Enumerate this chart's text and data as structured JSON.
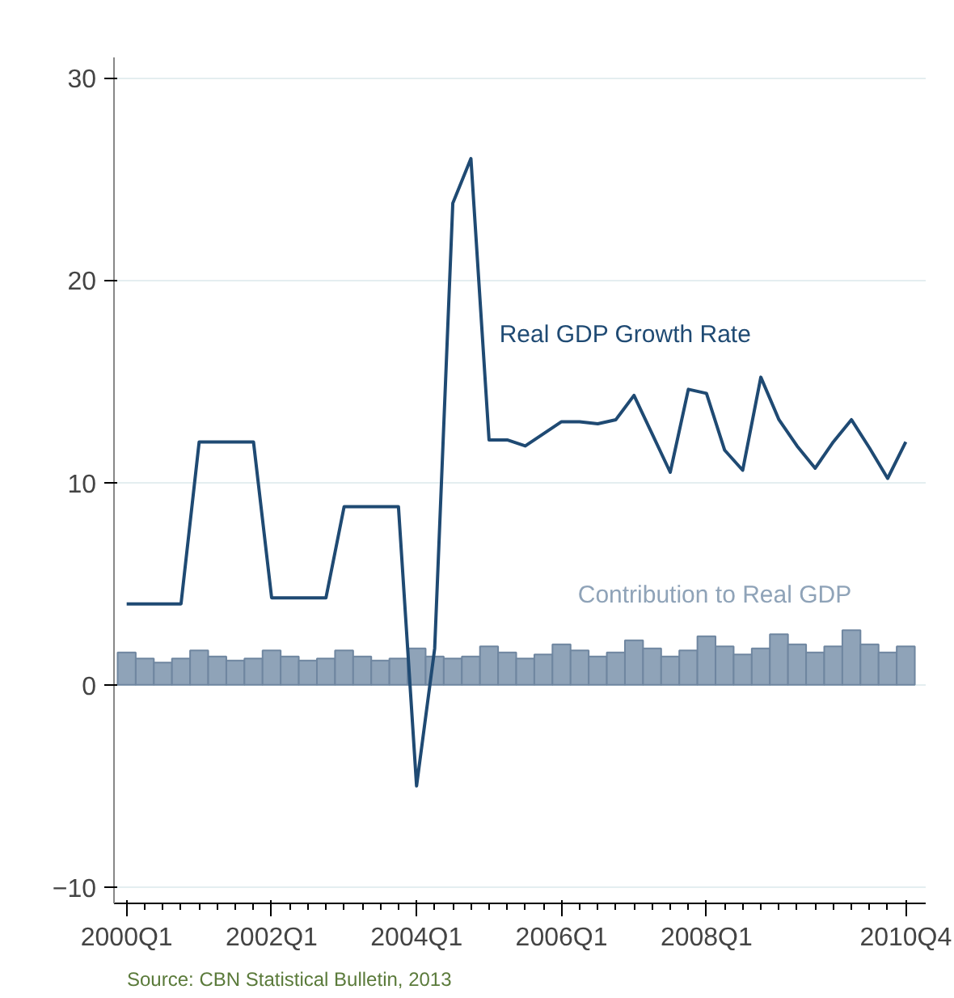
{
  "chart_data": {
    "type": "bar",
    "categories": [
      "2000Q1",
      null,
      null,
      null,
      null,
      null,
      null,
      null,
      "2002Q1",
      null,
      null,
      null,
      null,
      null,
      null,
      null,
      "2004Q1",
      null,
      null,
      null,
      null,
      null,
      null,
      null,
      "2006Q1",
      null,
      null,
      null,
      null,
      null,
      null,
      null,
      "2008Q1",
      null,
      null,
      null,
      null,
      null,
      null,
      null,
      null,
      null,
      null,
      "2010Q4"
    ],
    "series": [
      {
        "name": "Contribution to Real GDP",
        "color": "#8fa3b8",
        "values": [
          1.6,
          1.3,
          1.1,
          1.3,
          1.7,
          1.4,
          1.2,
          1.3,
          1.7,
          1.4,
          1.2,
          1.3,
          1.7,
          1.4,
          1.2,
          1.3,
          1.8,
          1.4,
          1.3,
          1.4,
          1.9,
          1.6,
          1.3,
          1.5,
          2.0,
          1.7,
          1.4,
          1.6,
          2.2,
          1.8,
          1.4,
          1.7,
          2.4,
          1.9,
          1.5,
          1.8,
          2.5,
          2.0,
          1.6,
          1.9,
          2.7,
          2.0,
          1.6,
          1.9
        ]
      },
      {
        "name": "Real GDP Growth Rate",
        "type": "line",
        "color": "#1f4a73",
        "values": [
          4.0,
          4.0,
          4.0,
          4.0,
          12.0,
          12.0,
          12.0,
          12.0,
          4.3,
          4.3,
          4.3,
          4.3,
          8.8,
          8.8,
          8.8,
          8.8,
          -5.0,
          1.8,
          23.8,
          26.0,
          12.1,
          12.1,
          11.8,
          12.4,
          13.0,
          13.0,
          12.9,
          13.1,
          14.3,
          12.4,
          10.5,
          14.6,
          14.4,
          11.6,
          10.6,
          15.2,
          13.1,
          11.8,
          10.7,
          12.0,
          13.1,
          11.7,
          10.2,
          12.0
        ]
      }
    ],
    "ylim": [
      -10.8,
      31
    ],
    "yticks": [
      -10,
      0,
      10,
      20,
      30
    ],
    "grid": "y",
    "legend": false,
    "annotations": [
      "Source: CBN Statistical Bulletin, 2013"
    ]
  }
}
